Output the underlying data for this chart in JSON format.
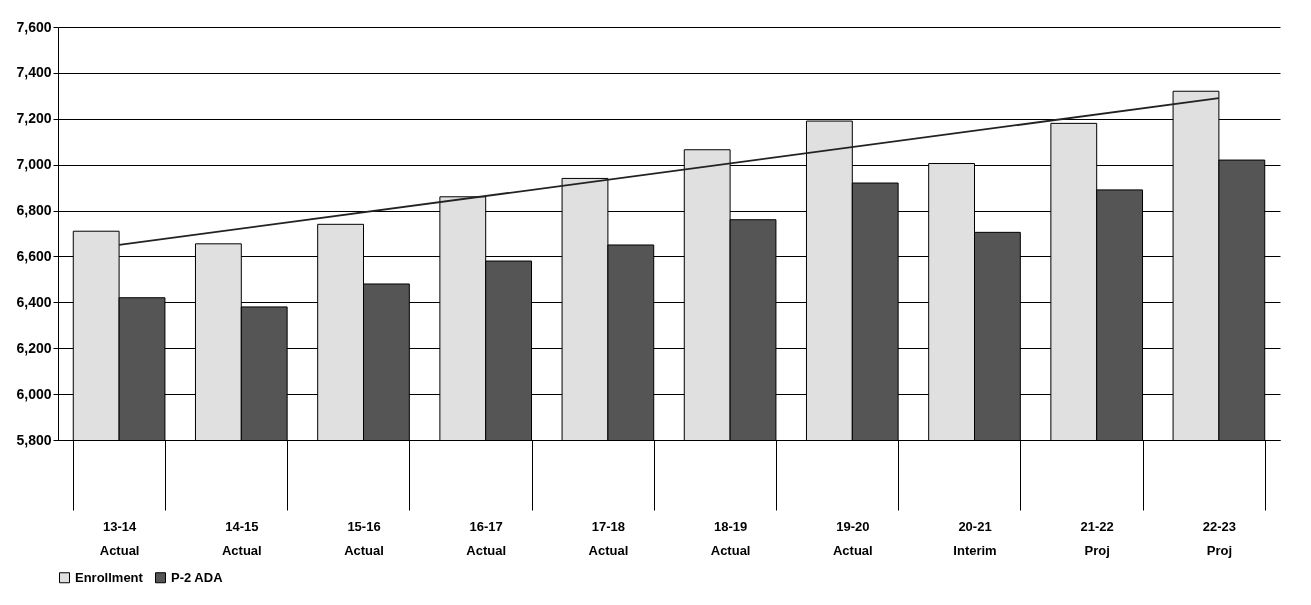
{
  "chart_data": {
    "type": "bar",
    "categories": [
      "13-14\nActual",
      "14-15\nActual",
      "15-16\nActual",
      "16-17\nActual",
      "17-18\nActual",
      "18-19\nActual",
      "19-20\nActual",
      "20-21\nInterim",
      "21-22\nProj",
      "22-23\nProj"
    ],
    "series": [
      {
        "name": "Enrollment",
        "color": "#e0e0e0",
        "values": [
          6710,
          6655,
          6740,
          6860,
          6940,
          7065,
          7190,
          7005,
          7180,
          7320
        ]
      },
      {
        "name": "P-2 ADA",
        "color": "#555555",
        "values": [
          6420,
          6380,
          6480,
          6580,
          6650,
          6760,
          6920,
          6705,
          6890,
          7020
        ]
      },
      {
        "type": "line",
        "color": "#222222",
        "x": [
          "13-14\nActual",
          "22-23\nProj"
        ],
        "values": [
          6650,
          7290
        ]
      }
    ],
    "ylim": [
      5800,
      7600
    ],
    "yticks": [
      {
        "value": 5800,
        "label": "5,800"
      },
      {
        "value": 6000,
        "label": "6,000"
      },
      {
        "value": 6200,
        "label": "6,200"
      },
      {
        "value": 6400,
        "label": "6,400"
      },
      {
        "value": 6600,
        "label": "6,600"
      },
      {
        "value": 6800,
        "label": "6,800"
      },
      {
        "value": 7000,
        "label": "7,000"
      },
      {
        "value": 7200,
        "label": "7,200"
      },
      {
        "value": 7400,
        "label": "7,400"
      },
      {
        "value": 7600,
        "label": "7,600"
      }
    ],
    "grid": "y",
    "legend": "bottom"
  }
}
